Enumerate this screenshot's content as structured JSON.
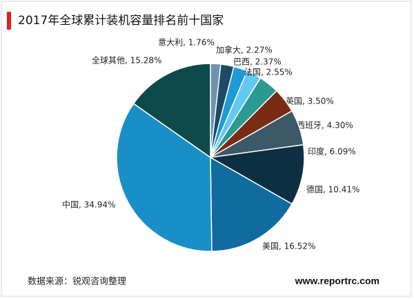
{
  "chart_data": {
    "type": "pie",
    "title": "2017年全球累计装机容量排名前十国家",
    "values": [
      1.76,
      2.27,
      2.37,
      2.55,
      3.5,
      4.3,
      6.09,
      10.41,
      16.52,
      34.94,
      15.28
    ],
    "value_labels": [
      "意大利, 1.76%",
      "加拿大, 2.27%",
      "巴西, 2.37%",
      "法国, 2.55%",
      "英国, 3.50%",
      "西班牙, 4.30%",
      "印度, 6.09%",
      "德国, 10.41%",
      "美国, 16.52%",
      "中国, 34.94%",
      "全球其他, 15.28%"
    ],
    "colors": [
      "#6f93ad",
      "#1d4a66",
      "#1e9ad6",
      "#63c9f1",
      "#2a9a93",
      "#7a2b14",
      "#3d5866",
      "#0e2f42",
      "#0c2b3e",
      "#0f6ba0",
      "#1a8fc7",
      "#0e4a4b"
    ],
    "source": "数据来源：锐观咨询整理",
    "website": "www.reportrc.com"
  }
}
